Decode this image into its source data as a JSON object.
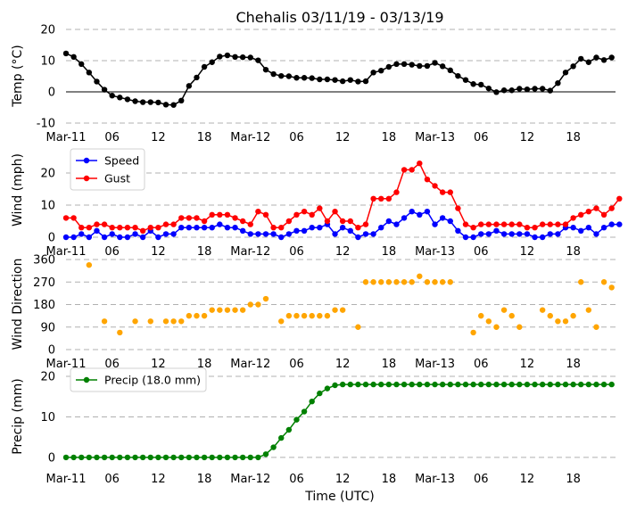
{
  "title": "Chehalis 03/11/19 - 03/13/19",
  "xlabel": "Time (UTC)",
  "x_tick_labels": [
    "Mar-11",
    "06",
    "12",
    "18",
    "Mar-12",
    "06",
    "12",
    "18",
    "Mar-13",
    "06",
    "12",
    "18"
  ],
  "x_tick_hours": [
    0,
    6,
    12,
    18,
    24,
    30,
    36,
    42,
    48,
    54,
    60,
    66
  ],
  "xlim": [
    0,
    71.5
  ],
  "colors": {
    "temp": "#000000",
    "speed": "#0000ff",
    "gust": "#ff0000",
    "direction": "#ffa500",
    "precip": "#008000",
    "grid": "#b0b0b0"
  },
  "chart_data": [
    {
      "type": "line",
      "ylabel": "Temp (°C)",
      "ylim": [
        -10,
        20
      ],
      "yticks": [
        -10,
        0,
        10,
        20
      ],
      "grid": true,
      "zero_line": true,
      "series": [
        {
          "values": [
            12.3,
            11.2,
            8.9,
            6.2,
            3.3,
            0.7,
            -1.2,
            -1.8,
            -2.4,
            -3.0,
            -3.3,
            -3.3,
            -3.4,
            -4.1,
            -4.2,
            -2.8,
            1.9,
            4.6,
            8.0,
            9.5,
            11.3,
            11.7,
            11.2,
            11.1,
            11.0,
            10.1,
            7.1,
            5.7,
            5.1,
            5.0,
            4.5,
            4.5,
            4.4,
            4.0,
            4.0,
            3.8,
            3.4,
            3.8,
            3.3,
            3.4,
            6.2,
            6.8,
            8.0,
            8.9,
            8.9,
            8.7,
            8.3,
            8.3,
            9.3,
            8.2,
            6.9,
            5.1,
            3.8,
            2.5,
            2.3,
            1.1,
            -0.1,
            0.5,
            0.5,
            1.0,
            0.8,
            1.0,
            1.0,
            0.4,
            2.8,
            6.2,
            8.2,
            10.6,
            9.5,
            11.0,
            10.2,
            11.0
          ]
        }
      ]
    },
    {
      "type": "line",
      "ylabel": "Wind (mph)",
      "ylim": [
        0,
        25
      ],
      "yticks": [
        0,
        10,
        20
      ],
      "grid": true,
      "legend": "top-left",
      "series": [
        {
          "name": "Speed",
          "values": [
            0,
            0,
            1,
            0,
            2,
            0,
            1,
            0,
            0,
            1,
            0,
            2,
            0,
            1,
            1,
            3,
            3,
            3,
            3,
            3,
            4,
            3,
            3,
            2,
            1,
            1,
            1,
            1,
            0,
            1,
            2,
            2,
            3,
            3,
            4,
            1,
            3,
            2,
            0,
            1,
            1,
            3,
            5,
            4,
            6,
            8,
            7,
            8,
            4,
            6,
            5,
            2,
            0,
            0,
            1,
            1,
            2,
            1,
            1,
            1,
            1,
            0,
            0,
            1,
            1,
            3,
            3,
            2,
            3,
            1,
            3,
            4,
            4
          ]
        },
        {
          "name": "Gust",
          "values": [
            6,
            6,
            3,
            3,
            4,
            4,
            3,
            3,
            3,
            3,
            2,
            3,
            3,
            4,
            4,
            6,
            6,
            6,
            5,
            7,
            7,
            7,
            6,
            5,
            4,
            8,
            7,
            3,
            3,
            5,
            7,
            8,
            7,
            9,
            5,
            8,
            5,
            5,
            3,
            4,
            12,
            12,
            12,
            14,
            21,
            21,
            23,
            18,
            16,
            14,
            14,
            9,
            4,
            3,
            4,
            4,
            4,
            4,
            4,
            4,
            3,
            3,
            4,
            4,
            4,
            4,
            6,
            7,
            8,
            9,
            7,
            9,
            12
          ]
        }
      ]
    },
    {
      "type": "scatter",
      "ylabel": "Wind Direction",
      "ylim": [
        0,
        360
      ],
      "yticks": [
        0,
        90,
        180,
        270,
        360
      ],
      "grid": true,
      "points": [
        [
          3,
          338
        ],
        [
          5,
          113
        ],
        [
          7,
          68
        ],
        [
          9,
          113
        ],
        [
          11,
          113
        ],
        [
          13,
          113
        ],
        [
          14,
          113
        ],
        [
          15,
          113
        ],
        [
          16,
          135
        ],
        [
          17,
          135
        ],
        [
          18,
          135
        ],
        [
          19,
          158
        ],
        [
          20,
          158
        ],
        [
          21,
          158
        ],
        [
          22,
          158
        ],
        [
          23,
          158
        ],
        [
          24,
          180
        ],
        [
          25,
          180
        ],
        [
          26,
          203
        ],
        [
          28,
          113
        ],
        [
          29,
          135
        ],
        [
          30,
          135
        ],
        [
          31,
          135
        ],
        [
          32,
          135
        ],
        [
          33,
          135
        ],
        [
          34,
          135
        ],
        [
          35,
          158
        ],
        [
          36,
          158
        ],
        [
          38,
          90
        ],
        [
          39,
          270
        ],
        [
          40,
          270
        ],
        [
          41,
          270
        ],
        [
          42,
          270
        ],
        [
          43,
          270
        ],
        [
          44,
          270
        ],
        [
          45,
          270
        ],
        [
          46,
          293
        ],
        [
          47,
          270
        ],
        [
          48,
          270
        ],
        [
          49,
          270
        ],
        [
          50,
          270
        ],
        [
          53,
          68
        ],
        [
          54,
          135
        ],
        [
          55,
          113
        ],
        [
          56,
          90
        ],
        [
          57,
          158
        ],
        [
          58,
          135
        ],
        [
          59,
          90
        ],
        [
          62,
          158
        ],
        [
          63,
          135
        ],
        [
          64,
          113
        ],
        [
          65,
          113
        ],
        [
          66,
          135
        ],
        [
          67,
          270
        ],
        [
          68,
          158
        ],
        [
          69,
          90
        ],
        [
          70,
          270
        ],
        [
          71,
          248
        ]
      ]
    },
    {
      "type": "line",
      "ylabel": "Precip (mm)",
      "ylim": [
        -2,
        20
      ],
      "yticks": [
        0,
        10,
        20
      ],
      "grid": true,
      "legend": "top-left",
      "series": [
        {
          "name": "Precip (18.0 mm)",
          "values": [
            0,
            0,
            0,
            0,
            0,
            0,
            0,
            0,
            0,
            0,
            0,
            0,
            0,
            0,
            0,
            0,
            0,
            0,
            0,
            0,
            0,
            0,
            0,
            0,
            0,
            0,
            0.8,
            2.5,
            4.8,
            6.8,
            9.3,
            11.3,
            13.8,
            15.8,
            17.0,
            17.8,
            18.0,
            18.0,
            18.0,
            18.0,
            18.0,
            18.0,
            18.0,
            18.0,
            18.0,
            18.0,
            18.0,
            18.0,
            18.0,
            18.0,
            18.0,
            18.0,
            18.0,
            18.0,
            18.0,
            18.0,
            18.0,
            18.0,
            18.0,
            18.0,
            18.0,
            18.0,
            18.0,
            18.0,
            18.0,
            18.0,
            18.0,
            18.0,
            18.0,
            18.0,
            18.0,
            18.0
          ]
        }
      ]
    }
  ]
}
